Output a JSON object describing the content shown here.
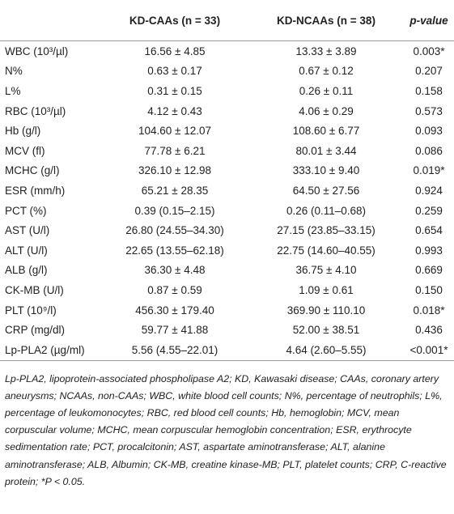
{
  "table": {
    "header": [
      "",
      "KD-CAAs (n = 33)",
      "KD-NCAAs (n = 38)",
      "p-value"
    ],
    "rows": [
      [
        "WBC (10³/µl)",
        "16.56 ± 4.85",
        "13.33 ± 3.89",
        "0.003*"
      ],
      [
        "N%",
        "0.63 ± 0.17",
        "0.67 ± 0.12",
        "0.207"
      ],
      [
        "L%",
        "0.31 ± 0.15",
        "0.26 ± 0.11",
        "0.158"
      ],
      [
        "RBC (10³/µl)",
        "4.12 ± 0.43",
        "4.06 ± 0.29",
        "0.573"
      ],
      [
        "Hb (g/l)",
        "104.60 ± 12.07",
        "108.60 ± 6.77",
        "0.093"
      ],
      [
        "MCV (fl)",
        "77.78 ± 6.21",
        "80.01 ± 3.44",
        "0.086"
      ],
      [
        "MCHC (g/l)",
        "326.10 ± 12.98",
        "333.10 ± 9.40",
        "0.019*"
      ],
      [
        "ESR (mm/h)",
        "65.21 ± 28.35",
        "64.50 ± 27.56",
        "0.924"
      ],
      [
        "PCT (%)",
        "0.39 (0.15–2.15)",
        "0.26 (0.11–0.68)",
        "0.259"
      ],
      [
        "AST (U/l)",
        "26.80 (24.55–34.30)",
        "27.15 (23.85–33.15)",
        "0.654"
      ],
      [
        "ALT (U/l)",
        "22.65 (13.55–62.18)",
        "22.75 (14.60–40.55)",
        "0.993"
      ],
      [
        "ALB (g/l)",
        "36.30 ± 4.48",
        "36.75 ± 4.10",
        "0.669"
      ],
      [
        "CK-MB (U/l)",
        "0.87 ± 0.59",
        "1.09 ± 0.61",
        "0.150"
      ],
      [
        "PLT (10⁹/l)",
        "456.30 ± 179.40",
        "369.90 ± 110.10",
        "0.018*"
      ],
      [
        "CRP (mg/dl)",
        "59.77 ± 41.88",
        "52.00 ± 38.51",
        "0.436"
      ],
      [
        "Lp-PLA2 (µg/ml)",
        "5.56 (4.55–22.01)",
        "4.64 (2.60–5.55)",
        "<0.001*"
      ]
    ],
    "note": "Lp-PLA2, lipoprotein-associated phospholipase A2; KD, Kawasaki disease; CAAs, coronary artery aneurysms; NCAAs, non-CAAs; WBC, white blood cell counts; N%, percentage of neutrophils; L%, percentage of leukomonocytes; RBC, red blood cell counts; Hb, hemoglobin; MCV, mean corpuscular volume; MCHC, mean corpuscular hemoglobin concentration; ESR, erythrocyte sedimentation rate; PCT, procalcitonin; AST, aspartate aminotransferase; ALT, alanine aminotransferase; ALB, Albumin; CK-MB, creatine kinase-MB; PLT, platelet counts; CRP, C-reactive protein; *P < 0.05."
  }
}
